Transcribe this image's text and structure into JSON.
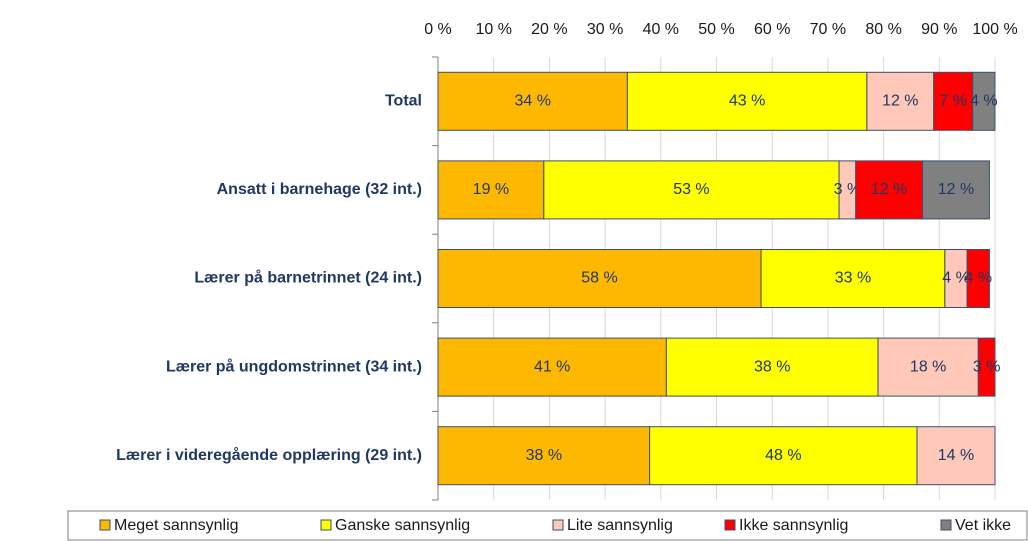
{
  "chart_data": {
    "type": "stacked-barh",
    "categories": [
      "Total",
      "Ansatt i barnehage (32 int.)",
      "Lærer på barnetrinnet (24 int.)",
      "Lærer på ungdomstrinnet (34 int.)",
      "Lærer i videregående opplæring (29 int.)"
    ],
    "series": [
      {
        "name": "Meget sannsynlig",
        "color": "#FFB800",
        "values": [
          34,
          19,
          58,
          41,
          38
        ],
        "value_labels": [
          "34 %",
          "19 %",
          "58 %",
          "41 %",
          "38 %"
        ]
      },
      {
        "name": "Ganske sannsynlig",
        "color": "#FFFF00",
        "values": [
          43,
          53,
          33,
          38,
          48
        ],
        "value_labels": [
          "43 %",
          "53 %",
          "33 %",
          "38 %",
          "48 %"
        ]
      },
      {
        "name": "Lite sannsynlig",
        "color": "#FFC8B9",
        "values": [
          12,
          3,
          4,
          18,
          14
        ],
        "value_labels": [
          "12 %",
          "3 %",
          "4 %",
          "18 %",
          "14 %"
        ]
      },
      {
        "name": "Ikke sannsynlig",
        "color": "#FF0000",
        "values": [
          7,
          12,
          4,
          3,
          null
        ],
        "value_labels": [
          "7 %",
          "12 %",
          "4 %",
          "3 %",
          null
        ]
      },
      {
        "name": "Vet ikke",
        "color": "#808080",
        "values": [
          4,
          12,
          null,
          null,
          null
        ],
        "value_labels": [
          "4 %",
          "12 %",
          null,
          null,
          null
        ]
      }
    ],
    "xlim": [
      0,
      100
    ],
    "xticks": [
      {
        "value": 0,
        "label": "0 %"
      },
      {
        "value": 10,
        "label": "10 %"
      },
      {
        "value": 20,
        "label": "20 %"
      },
      {
        "value": 30,
        "label": "30 %"
      },
      {
        "value": 40,
        "label": "40 %"
      },
      {
        "value": 50,
        "label": "50 %"
      },
      {
        "value": 60,
        "label": "60 %"
      },
      {
        "value": 70,
        "label": "70 %"
      },
      {
        "value": 80,
        "label": "80 %"
      },
      {
        "value": 90,
        "label": "90 %"
      },
      {
        "value": 100,
        "label": "100 %"
      }
    ],
    "grid": true,
    "legend": "bottom"
  }
}
